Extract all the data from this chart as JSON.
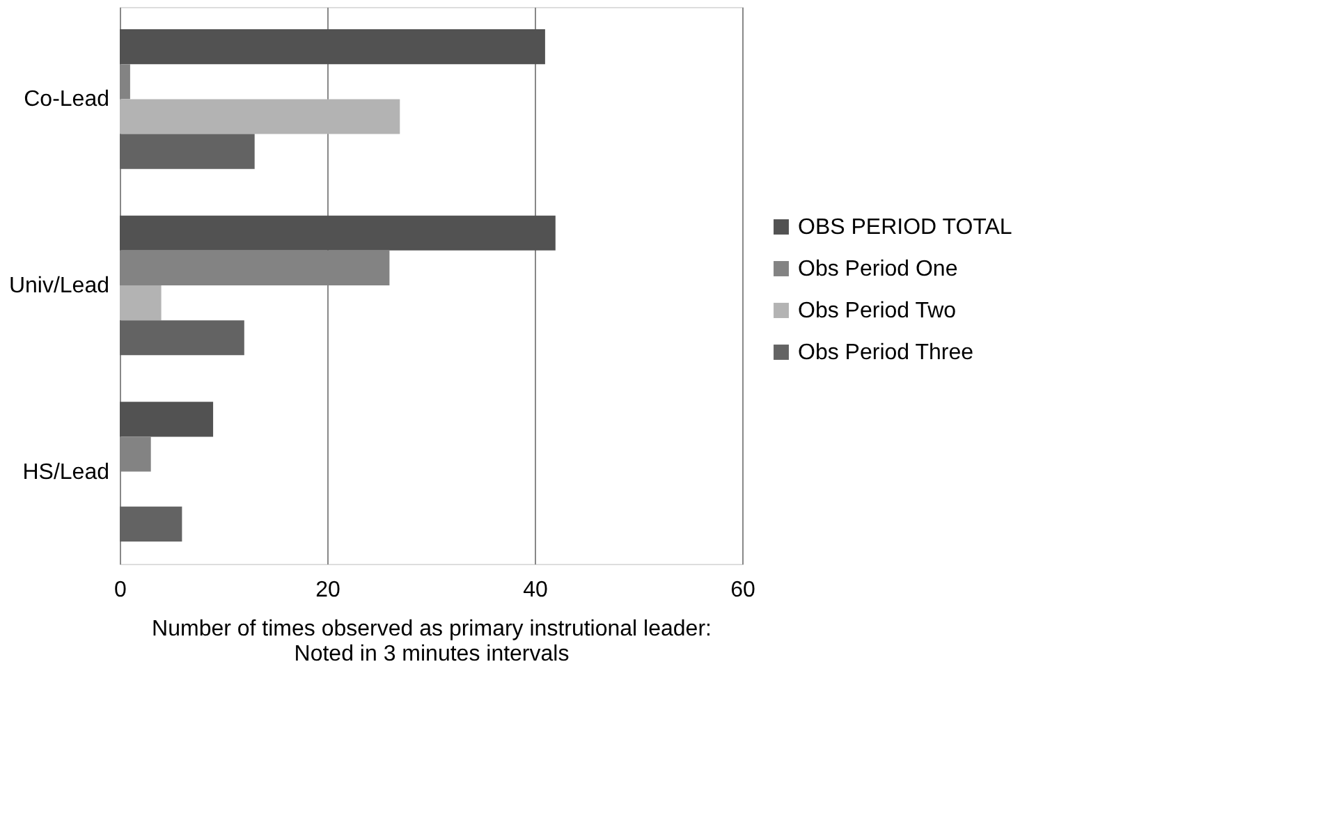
{
  "chart_data": {
    "type": "bar",
    "orientation": "horizontal",
    "xlabel": "Number of times observed as primary instrutional leader: Noted in 3 minutes intervals",
    "categories": [
      "Co-Lead",
      "Univ/Lead",
      "HS/Lead"
    ],
    "series": [
      {
        "name": "OBS PERIOD TOTAL",
        "color": "#525252",
        "values": [
          41,
          42,
          9
        ]
      },
      {
        "name": "Obs Period One",
        "color": "#838383",
        "values": [
          1,
          26,
          3
        ]
      },
      {
        "name": "Obs Period Two",
        "color": "#b3b3b3",
        "values": [
          27,
          4,
          0
        ]
      },
      {
        "name": "Obs Period Three",
        "color": "#636363",
        "values": [
          13,
          12,
          6
        ]
      }
    ],
    "xlim": [
      0,
      60
    ],
    "xticks": [
      0,
      20,
      40,
      60
    ],
    "grid": "x",
    "legend": "right"
  }
}
